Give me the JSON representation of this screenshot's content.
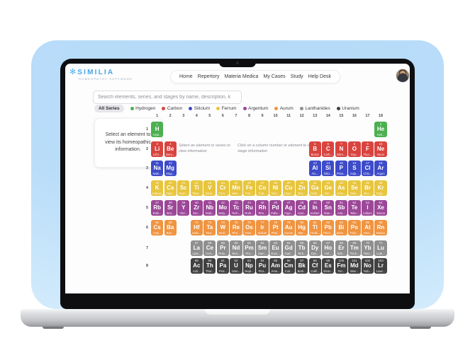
{
  "logo": {
    "name": "SIMILIA",
    "tagline": "HOMEOPATHY SOFTWARE"
  },
  "nav": {
    "items": [
      "Home",
      "Repertory",
      "Materia Medica",
      "My Cases",
      "Study",
      "Help Desk"
    ]
  },
  "search": {
    "placeholder": "Search elements, series, and stages by name, description, k"
  },
  "filters": {
    "all_series_label": "All Series",
    "series": [
      {
        "key": "hydrogen",
        "label": "Hydrogen"
      },
      {
        "key": "carbon",
        "label": "Carbon"
      },
      {
        "key": "silicium",
        "label": "Silicium"
      },
      {
        "key": "ferrum",
        "label": "Ferrum"
      },
      {
        "key": "argentum",
        "label": "Argentum"
      },
      {
        "key": "aurum",
        "label": "Aurum"
      },
      {
        "key": "lanthanides",
        "label": "Lanthanides"
      },
      {
        "key": "uranium",
        "label": "Uranium"
      }
    ]
  },
  "colors": {
    "accent": "#46a6e6",
    "series": {
      "hydrogen": "#4caf50",
      "carbon": "#d9443e",
      "silicium": "#3d4bc9",
      "ferrum": "#e8c53d",
      "argentum": "#9c4798",
      "aurum": "#f09440",
      "lanthanides": "#8f8f8f",
      "uranium": "#414141"
    }
  },
  "info_card": {
    "text": "Select an element to view its homeopathic information."
  },
  "hints": {
    "series": "Select an element or series to view information",
    "stage": "Click on a column number or element to view stage information"
  },
  "table": {
    "columns": [
      1,
      2,
      3,
      4,
      5,
      6,
      7,
      8,
      9,
      10,
      11,
      12,
      13,
      14,
      15,
      16,
      17,
      18
    ],
    "rows": [
      1,
      2,
      3,
      4,
      5,
      6,
      7,
      8
    ],
    "elements": [
      {
        "r": 1,
        "c": 1,
        "n": 1,
        "s": "H",
        "name": "Hydr...",
        "k": "hydrogen"
      },
      {
        "r": 1,
        "c": 18,
        "n": 2,
        "s": "He",
        "name": "Heli...",
        "k": "hydrogen"
      },
      {
        "r": 2,
        "c": 1,
        "n": 3,
        "s": "Li",
        "name": "Lithi...",
        "k": "carbon"
      },
      {
        "r": 2,
        "c": 2,
        "n": 4,
        "s": "Be",
        "name": "Bery...",
        "k": "carbon"
      },
      {
        "r": 2,
        "c": 13,
        "n": 5,
        "s": "B",
        "name": "Boron",
        "k": "carbon"
      },
      {
        "r": 2,
        "c": 14,
        "n": 6,
        "s": "C",
        "name": "Carb...",
        "k": "carbon"
      },
      {
        "r": 2,
        "c": 15,
        "n": 7,
        "s": "N",
        "name": "Nitro...",
        "k": "carbon"
      },
      {
        "r": 2,
        "c": 16,
        "n": 8,
        "s": "O",
        "name": "Oxy...",
        "k": "carbon"
      },
      {
        "r": 2,
        "c": 17,
        "n": 9,
        "s": "F",
        "name": "Fluo...",
        "k": "carbon"
      },
      {
        "r": 2,
        "c": 18,
        "n": 10,
        "s": "Ne",
        "name": "Neon",
        "k": "carbon"
      },
      {
        "r": 3,
        "c": 1,
        "n": 11,
        "s": "Na",
        "name": "Natri...",
        "k": "silicium"
      },
      {
        "r": 3,
        "c": 2,
        "n": 12,
        "s": "Mg",
        "name": "Mag...",
        "k": "silicium"
      },
      {
        "r": 3,
        "c": 13,
        "n": 13,
        "s": "Al",
        "name": "Alu...",
        "k": "silicium"
      },
      {
        "r": 3,
        "c": 14,
        "n": 14,
        "s": "Si",
        "name": "Silici...",
        "k": "silicium"
      },
      {
        "r": 3,
        "c": 15,
        "n": 15,
        "s": "P",
        "name": "Phos...",
        "k": "silicium"
      },
      {
        "r": 3,
        "c": 16,
        "n": 16,
        "s": "S",
        "name": "Sulp...",
        "k": "silicium"
      },
      {
        "r": 3,
        "c": 17,
        "n": 17,
        "s": "Cl",
        "name": "Chlo...",
        "k": "silicium"
      },
      {
        "r": 3,
        "c": 18,
        "n": 18,
        "s": "Ar",
        "name": "Argon",
        "k": "silicium"
      },
      {
        "r": 4,
        "c": 1,
        "n": 19,
        "s": "K",
        "name": "Kalium",
        "k": "ferrum"
      },
      {
        "r": 4,
        "c": 2,
        "n": 20,
        "s": "Ca",
        "name": "Calci...",
        "k": "ferrum"
      },
      {
        "r": 4,
        "c": 3,
        "n": 21,
        "s": "Sc",
        "name": "Scan...",
        "k": "ferrum"
      },
      {
        "r": 4,
        "c": 4,
        "n": 22,
        "s": "Ti",
        "name": "Titan...",
        "k": "ferrum"
      },
      {
        "r": 4,
        "c": 5,
        "n": 23,
        "s": "V",
        "name": "Vana...",
        "k": "ferrum"
      },
      {
        "r": 4,
        "c": 6,
        "n": 24,
        "s": "Cr",
        "name": "Chro...",
        "k": "ferrum"
      },
      {
        "r": 4,
        "c": 7,
        "n": 25,
        "s": "Mn",
        "name": "Man...",
        "k": "ferrum"
      },
      {
        "r": 4,
        "c": 8,
        "n": 26,
        "s": "Fe",
        "name": "Ferr...",
        "k": "ferrum"
      },
      {
        "r": 4,
        "c": 9,
        "n": 27,
        "s": "Co",
        "name": "Cob...",
        "k": "ferrum"
      },
      {
        "r": 4,
        "c": 10,
        "n": 28,
        "s": "Ni",
        "name": "Nicc...",
        "k": "ferrum"
      },
      {
        "r": 4,
        "c": 11,
        "n": 29,
        "s": "Cu",
        "name": "Cupr...",
        "k": "ferrum"
      },
      {
        "r": 4,
        "c": 12,
        "n": 30,
        "s": "Zn",
        "name": "Zinc...",
        "k": "ferrum"
      },
      {
        "r": 4,
        "c": 13,
        "n": 31,
        "s": "Ga",
        "name": "Galli...",
        "k": "ferrum"
      },
      {
        "r": 4,
        "c": 14,
        "n": 32,
        "s": "Ge",
        "name": "Ger...",
        "k": "ferrum"
      },
      {
        "r": 4,
        "c": 15,
        "n": 33,
        "s": "As",
        "name": "Arse...",
        "k": "ferrum"
      },
      {
        "r": 4,
        "c": 16,
        "n": 34,
        "s": "Se",
        "name": "Sele...",
        "k": "ferrum"
      },
      {
        "r": 4,
        "c": 17,
        "n": 35,
        "s": "Br",
        "name": "Bro...",
        "k": "ferrum"
      },
      {
        "r": 4,
        "c": 18,
        "n": 36,
        "s": "Kr",
        "name": "Kryp...",
        "k": "ferrum"
      },
      {
        "r": 5,
        "c": 1,
        "n": 37,
        "s": "Rb",
        "name": "Rubi...",
        "k": "argentum"
      },
      {
        "r": 5,
        "c": 2,
        "n": 38,
        "s": "Sr",
        "name": "Stro...",
        "k": "argentum"
      },
      {
        "r": 5,
        "c": 3,
        "n": 39,
        "s": "Y",
        "name": "Yttri...",
        "k": "argentum"
      },
      {
        "r": 5,
        "c": 4,
        "n": 40,
        "s": "Zr",
        "name": "Zirc...",
        "k": "argentum"
      },
      {
        "r": 5,
        "c": 5,
        "n": 41,
        "s": "Nb",
        "name": "Niob...",
        "k": "argentum"
      },
      {
        "r": 5,
        "c": 6,
        "n": 42,
        "s": "Mo",
        "name": "Moly...",
        "k": "argentum"
      },
      {
        "r": 5,
        "c": 7,
        "n": 43,
        "s": "Tc",
        "name": "Tech...",
        "k": "argentum"
      },
      {
        "r": 5,
        "c": 8,
        "n": 44,
        "s": "Ru",
        "name": "Ruth...",
        "k": "argentum"
      },
      {
        "r": 5,
        "c": 9,
        "n": 45,
        "s": "Rh",
        "name": "Rho...",
        "k": "argentum"
      },
      {
        "r": 5,
        "c": 10,
        "n": 46,
        "s": "Pd",
        "name": "Palla...",
        "k": "argentum"
      },
      {
        "r": 5,
        "c": 11,
        "n": 47,
        "s": "Ag",
        "name": "Arge...",
        "k": "argentum"
      },
      {
        "r": 5,
        "c": 12,
        "n": 48,
        "s": "Cd",
        "name": "Cad...",
        "k": "argentum"
      },
      {
        "r": 5,
        "c": 13,
        "n": 49,
        "s": "In",
        "name": "Indium",
        "k": "argentum"
      },
      {
        "r": 5,
        "c": 14,
        "n": 50,
        "s": "Sn",
        "name": "Stan...",
        "k": "argentum"
      },
      {
        "r": 5,
        "c": 15,
        "n": 51,
        "s": "Sb",
        "name": "Anti...",
        "k": "argentum"
      },
      {
        "r": 5,
        "c": 16,
        "n": 52,
        "s": "Te",
        "name": "Tellu...",
        "k": "argentum"
      },
      {
        "r": 5,
        "c": 17,
        "n": 53,
        "s": "I",
        "name": "Iodium",
        "k": "argentum"
      },
      {
        "r": 5,
        "c": 18,
        "n": 54,
        "s": "Xe",
        "name": "Xenon",
        "k": "argentum"
      },
      {
        "r": 6,
        "c": 1,
        "n": 55,
        "s": "Cs",
        "name": "Cesi...",
        "k": "aurum"
      },
      {
        "r": 6,
        "c": 2,
        "n": 56,
        "s": "Ba",
        "name": "Bari...",
        "k": "aurum"
      },
      {
        "r": 6,
        "c": 4,
        "n": 72,
        "s": "Hf",
        "name": "Hafn...",
        "k": "aurum"
      },
      {
        "r": 6,
        "c": 5,
        "n": 73,
        "s": "Ta",
        "name": "Tant...",
        "k": "aurum"
      },
      {
        "r": 6,
        "c": 6,
        "n": 74,
        "s": "W",
        "name": "Wolf...",
        "k": "aurum"
      },
      {
        "r": 6,
        "c": 7,
        "n": 75,
        "s": "Re",
        "name": "Rhe...",
        "k": "aurum"
      },
      {
        "r": 6,
        "c": 8,
        "n": 76,
        "s": "Os",
        "name": "Osm...",
        "k": "aurum"
      },
      {
        "r": 6,
        "c": 9,
        "n": 77,
        "s": "Ir",
        "name": "Iridium",
        "k": "aurum"
      },
      {
        "r": 6,
        "c": 10,
        "n": 78,
        "s": "Pt",
        "name": "Plati...",
        "k": "aurum"
      },
      {
        "r": 6,
        "c": 11,
        "n": 79,
        "s": "Au",
        "name": "Aurum",
        "k": "aurum"
      },
      {
        "r": 6,
        "c": 12,
        "n": 80,
        "s": "Hg",
        "name": "Mer...",
        "k": "aurum"
      },
      {
        "r": 6,
        "c": 13,
        "n": 81,
        "s": "Tl",
        "name": "Thalli...",
        "k": "aurum"
      },
      {
        "r": 6,
        "c": 14,
        "n": 82,
        "s": "Pb",
        "name": "Plum...",
        "k": "aurum"
      },
      {
        "r": 6,
        "c": 15,
        "n": 83,
        "s": "Bi",
        "name": "Bism...",
        "k": "aurum"
      },
      {
        "r": 6,
        "c": 16,
        "n": 84,
        "s": "Po",
        "name": "Polo...",
        "k": "aurum"
      },
      {
        "r": 6,
        "c": 17,
        "n": 85,
        "s": "At",
        "name": "Asta...",
        "k": "aurum"
      },
      {
        "r": 6,
        "c": 18,
        "n": 86,
        "s": "Rn",
        "name": "Radon",
        "k": "aurum"
      },
      {
        "r": 7,
        "c": 4,
        "n": 57,
        "s": "La",
        "name": "Lant...",
        "k": "lanthanides"
      },
      {
        "r": 7,
        "c": 5,
        "n": 58,
        "s": "Ce",
        "name": "Ceri...",
        "k": "lanthanides"
      },
      {
        "r": 7,
        "c": 6,
        "n": 59,
        "s": "Pr",
        "name": "Pras...",
        "k": "lanthanides"
      },
      {
        "r": 7,
        "c": 7,
        "n": 60,
        "s": "Nd",
        "name": "Neo...",
        "k": "lanthanides"
      },
      {
        "r": 7,
        "c": 8,
        "n": 61,
        "s": "Pm",
        "name": "Pro...",
        "k": "lanthanides"
      },
      {
        "r": 7,
        "c": 9,
        "n": 62,
        "s": "Sm",
        "name": "Sam...",
        "k": "lanthanides"
      },
      {
        "r": 7,
        "c": 10,
        "n": 63,
        "s": "Eu",
        "name": "Euro...",
        "k": "lanthanides"
      },
      {
        "r": 7,
        "c": 11,
        "n": 64,
        "s": "Gd",
        "name": "Gad...",
        "k": "lanthanides"
      },
      {
        "r": 7,
        "c": 12,
        "n": 65,
        "s": "Tb",
        "name": "Terb...",
        "k": "lanthanides"
      },
      {
        "r": 7,
        "c": 13,
        "n": 66,
        "s": "Dy",
        "name": "Dys...",
        "k": "lanthanides"
      },
      {
        "r": 7,
        "c": 14,
        "n": 67,
        "s": "Ho",
        "name": "Hol...",
        "k": "lanthanides"
      },
      {
        "r": 7,
        "c": 15,
        "n": 68,
        "s": "Er",
        "name": "Erbi...",
        "k": "lanthanides"
      },
      {
        "r": 7,
        "c": 16,
        "n": 69,
        "s": "Tm",
        "name": "Thuli...",
        "k": "lanthanides"
      },
      {
        "r": 7,
        "c": 17,
        "n": 70,
        "s": "Yb",
        "name": "Ytter...",
        "k": "lanthanides"
      },
      {
        "r": 7,
        "c": 18,
        "n": 71,
        "s": "Lu",
        "name": "Lute...",
        "k": "lanthanides"
      },
      {
        "r": 8,
        "c": 4,
        "n": 89,
        "s": "Ac",
        "name": "Acti...",
        "k": "uranium"
      },
      {
        "r": 8,
        "c": 5,
        "n": 90,
        "s": "Th",
        "name": "Thor...",
        "k": "uranium"
      },
      {
        "r": 8,
        "c": 6,
        "n": 91,
        "s": "Pa",
        "name": "Prot...",
        "k": "uranium"
      },
      {
        "r": 8,
        "c": 7,
        "n": 92,
        "s": "U",
        "name": "Uran...",
        "k": "uranium"
      },
      {
        "r": 8,
        "c": 8,
        "n": 93,
        "s": "Np",
        "name": "Nept...",
        "k": "uranium"
      },
      {
        "r": 8,
        "c": 9,
        "n": 94,
        "s": "Pu",
        "name": "Plut...",
        "k": "uranium"
      },
      {
        "r": 8,
        "c": 10,
        "n": 95,
        "s": "Am",
        "name": "Ame...",
        "k": "uranium"
      },
      {
        "r": 8,
        "c": 11,
        "n": 96,
        "s": "Cm",
        "name": "Curi...",
        "k": "uranium"
      },
      {
        "r": 8,
        "c": 12,
        "n": 97,
        "s": "Bk",
        "name": "Berk...",
        "k": "uranium"
      },
      {
        "r": 8,
        "c": 13,
        "n": 98,
        "s": "Cf",
        "name": "Calif...",
        "k": "uranium"
      },
      {
        "r": 8,
        "c": 14,
        "n": 99,
        "s": "Es",
        "name": "Einst...",
        "k": "uranium"
      },
      {
        "r": 8,
        "c": 15,
        "n": 100,
        "s": "Fm",
        "name": "Fer...",
        "k": "uranium"
      },
      {
        "r": 8,
        "c": 16,
        "n": 101,
        "s": "Md",
        "name": "Men...",
        "k": "uranium"
      },
      {
        "r": 8,
        "c": 17,
        "n": 102,
        "s": "No",
        "name": "Nob...",
        "k": "uranium"
      },
      {
        "r": 8,
        "c": 18,
        "n": 103,
        "s": "Lr",
        "name": "Lawr...",
        "k": "uranium"
      }
    ]
  }
}
